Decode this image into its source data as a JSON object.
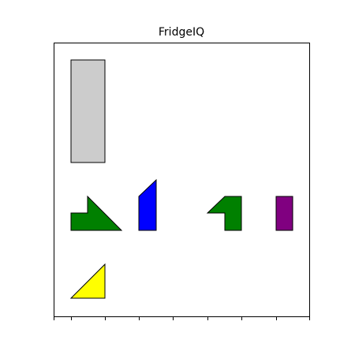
{
  "app": {
    "title": "FridgeIQ"
  },
  "board": {
    "background": "#ffffff",
    "border_color": "#000000",
    "tick_count": 9
  },
  "pieces": [
    {
      "name": "grey-rectangle-piece",
      "color": "#cccccc",
      "shape": "tall-rectangle"
    },
    {
      "name": "green-l-triangle-piece",
      "color": "#008000",
      "shape": "step-triangle"
    },
    {
      "name": "blue-parallelogram-piece",
      "color": "#0000ff",
      "shape": "slanted-bar"
    },
    {
      "name": "green-hook-piece",
      "color": "#008000",
      "shape": "hook"
    },
    {
      "name": "purple-rectangle-piece",
      "color": "#800080",
      "shape": "small-rectangle"
    },
    {
      "name": "yellow-triangle-piece",
      "color": "#ffff00",
      "shape": "right-triangle"
    }
  ]
}
